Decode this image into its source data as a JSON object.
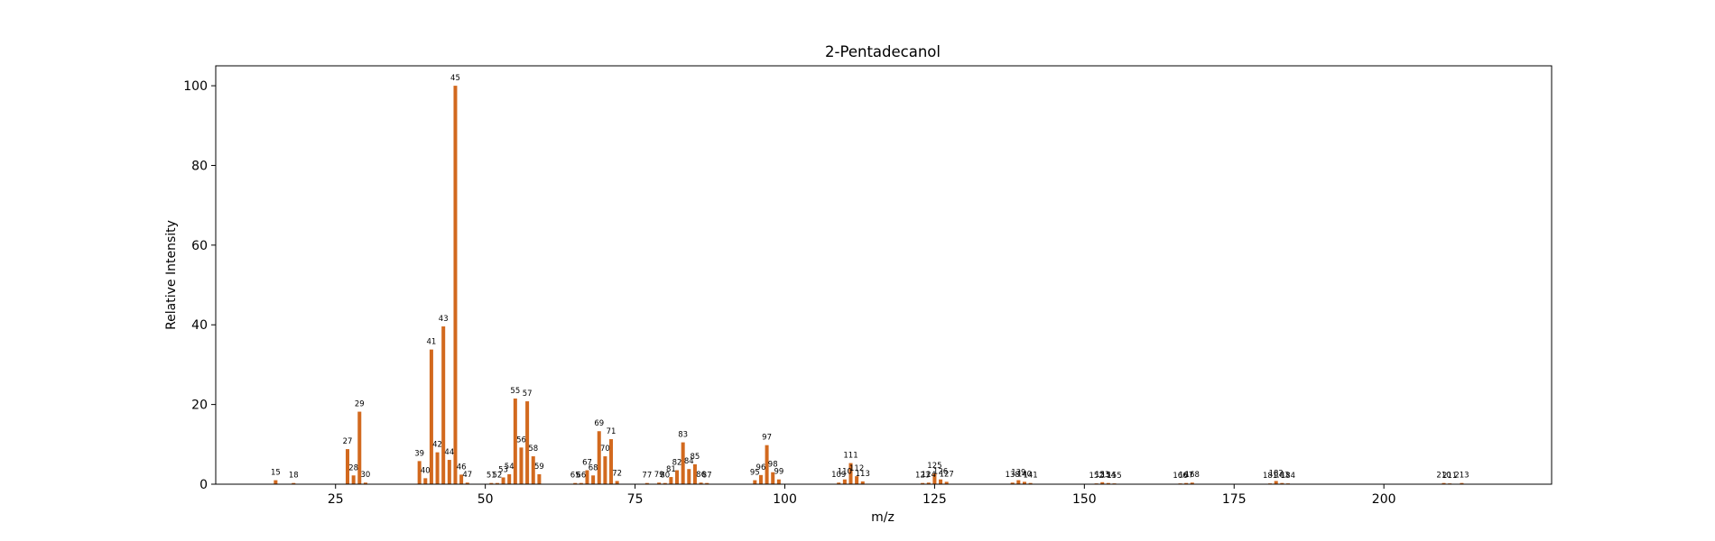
{
  "chart_data": {
    "type": "bar",
    "title": "2-Pentadecanol",
    "xlabel": "m/z",
    "ylabel": "Relative Intensity",
    "xlim": [
      5,
      228
    ],
    "ylim": [
      0,
      105
    ],
    "xticks": [
      25,
      50,
      75,
      100,
      125,
      150,
      175,
      200
    ],
    "yticks": [
      0,
      20,
      40,
      60,
      80,
      100
    ],
    "bar_color": "#d2691e",
    "grid": false,
    "legend": "none",
    "peaks": [
      {
        "mz": 15,
        "intensity": 1.0
      },
      {
        "mz": 18,
        "intensity": 0.3
      },
      {
        "mz": 27,
        "intensity": 8.8
      },
      {
        "mz": 28,
        "intensity": 2.2
      },
      {
        "mz": 29,
        "intensity": 18.2
      },
      {
        "mz": 30,
        "intensity": 0.4
      },
      {
        "mz": 39,
        "intensity": 5.8
      },
      {
        "mz": 40,
        "intensity": 1.5
      },
      {
        "mz": 41,
        "intensity": 33.8
      },
      {
        "mz": 42,
        "intensity": 8.0
      },
      {
        "mz": 43,
        "intensity": 39.6
      },
      {
        "mz": 44,
        "intensity": 6.1
      },
      {
        "mz": 45,
        "intensity": 100
      },
      {
        "mz": 46,
        "intensity": 2.4
      },
      {
        "mz": 47,
        "intensity": 0.4
      },
      {
        "mz": 51,
        "intensity": 0.3
      },
      {
        "mz": 52,
        "intensity": 0.3
      },
      {
        "mz": 53,
        "intensity": 1.7
      },
      {
        "mz": 54,
        "intensity": 2.5
      },
      {
        "mz": 55,
        "intensity": 21.5
      },
      {
        "mz": 56,
        "intensity": 9.2
      },
      {
        "mz": 57,
        "intensity": 20.8
      },
      {
        "mz": 58,
        "intensity": 7.0
      },
      {
        "mz": 59,
        "intensity": 2.5
      },
      {
        "mz": 65,
        "intensity": 0.3
      },
      {
        "mz": 66,
        "intensity": 0.3
      },
      {
        "mz": 67,
        "intensity": 3.5
      },
      {
        "mz": 68,
        "intensity": 2.2
      },
      {
        "mz": 69,
        "intensity": 13.3
      },
      {
        "mz": 70,
        "intensity": 7.0
      },
      {
        "mz": 71,
        "intensity": 11.3
      },
      {
        "mz": 72,
        "intensity": 0.8
      },
      {
        "mz": 77,
        "intensity": 0.3
      },
      {
        "mz": 79,
        "intensity": 0.4
      },
      {
        "mz": 80,
        "intensity": 0.3
      },
      {
        "mz": 81,
        "intensity": 1.8
      },
      {
        "mz": 82,
        "intensity": 3.5
      },
      {
        "mz": 83,
        "intensity": 10.5
      },
      {
        "mz": 84,
        "intensity": 3.8
      },
      {
        "mz": 85,
        "intensity": 5.0
      },
      {
        "mz": 86,
        "intensity": 0.4
      },
      {
        "mz": 87,
        "intensity": 0.3
      },
      {
        "mz": 95,
        "intensity": 1.0
      },
      {
        "mz": 96,
        "intensity": 2.3
      },
      {
        "mz": 97,
        "intensity": 9.8
      },
      {
        "mz": 98,
        "intensity": 3.0
      },
      {
        "mz": 99,
        "intensity": 1.2
      },
      {
        "mz": 109,
        "intensity": 0.4
      },
      {
        "mz": 110,
        "intensity": 1.2
      },
      {
        "mz": 111,
        "intensity": 5.3
      },
      {
        "mz": 112,
        "intensity": 2.0
      },
      {
        "mz": 113,
        "intensity": 0.7
      },
      {
        "mz": 123,
        "intensity": 0.3
      },
      {
        "mz": 124,
        "intensity": 0.4
      },
      {
        "mz": 125,
        "intensity": 2.7
      },
      {
        "mz": 126,
        "intensity": 1.2
      },
      {
        "mz": 127,
        "intensity": 0.6
      },
      {
        "mz": 138,
        "intensity": 0.4
      },
      {
        "mz": 139,
        "intensity": 1.0
      },
      {
        "mz": 140,
        "intensity": 0.6
      },
      {
        "mz": 141,
        "intensity": 0.3
      },
      {
        "mz": 152,
        "intensity": 0.2
      },
      {
        "mz": 153,
        "intensity": 0.5
      },
      {
        "mz": 154,
        "intensity": 0.3
      },
      {
        "mz": 155,
        "intensity": 0.2
      },
      {
        "mz": 166,
        "intensity": 0.2
      },
      {
        "mz": 167,
        "intensity": 0.3
      },
      {
        "mz": 168,
        "intensity": 0.4
      },
      {
        "mz": 181,
        "intensity": 0.2
      },
      {
        "mz": 182,
        "intensity": 0.8
      },
      {
        "mz": 183,
        "intensity": 0.3
      },
      {
        "mz": 184,
        "intensity": 0.2
      },
      {
        "mz": 210,
        "intensity": 0.3
      },
      {
        "mz": 211,
        "intensity": 0.2
      },
      {
        "mz": 213,
        "intensity": 0.3
      }
    ]
  }
}
